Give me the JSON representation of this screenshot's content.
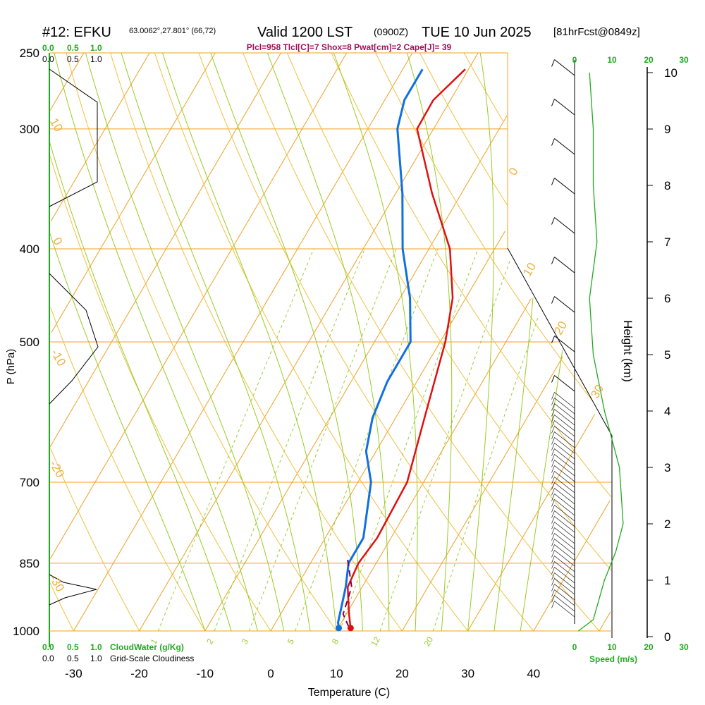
{
  "header": {
    "station": "#12: EFKU",
    "coords": "63.0062°,27.801° (66,72)",
    "valid": "Valid 1200 LST",
    "zulu": "(0900Z)",
    "date": "TUE 10 Jun 2025",
    "forecast": "[81hrFcst@0849z]"
  },
  "params_line": "Plcl=958 Tlcl[C]=7 Shox=8 Pwat[cm]=2 Cape[J]= 39",
  "top_left_scale": {
    "green": [
      "0.0",
      "0.5",
      "1.0"
    ],
    "black": [
      "0.0",
      "0.5",
      "1.0"
    ]
  },
  "bottom_left_scale": {
    "green": [
      "0.0",
      "0.5",
      "1.0"
    ],
    "green_label": "CloudWater (g/Kg)",
    "black": [
      "0.0",
      "0.5",
      "1.0"
    ],
    "black_label": "Grid-Scale Cloudiness"
  },
  "speed_scale": {
    "ticks": [
      "0",
      "10",
      "20",
      "30"
    ],
    "label": "Speed (m/s)"
  },
  "colors": {
    "isotherm": "#f0a020",
    "dry_adiabat": "#f0c040",
    "moist_adiabat": "#99cc22",
    "mixing_ratio": "#99cc33",
    "temperature": "#e01010",
    "dewpoint": "#1070e0",
    "parcel": "#800050",
    "speed": "#22aa22"
  },
  "chart_data": {
    "type": "skew-t",
    "xlabel": "Temperature (C)",
    "ylabel": "P (hPa)",
    "y2label": "Height (km)",
    "x_ticks": [
      -30,
      -20,
      -10,
      0,
      10,
      20,
      30,
      40
    ],
    "p_ticks": [
      250,
      300,
      400,
      500,
      700,
      850,
      1000
    ],
    "height_ticks": [
      0,
      1,
      2,
      3,
      4,
      5,
      6,
      7,
      8,
      9,
      10
    ],
    "isotherm_labels": [
      "0",
      "10",
      "20",
      "30",
      "10",
      "0",
      "-10",
      "-20",
      "-30"
    ],
    "mixing_ratio_labels": [
      "1",
      "2",
      "3",
      "5",
      "8",
      "12",
      "20"
    ],
    "temperature_profile": [
      {
        "p": 993,
        "t": 11.9
      },
      {
        "p": 960,
        "t": 10.4
      },
      {
        "p": 900,
        "t": 7.8
      },
      {
        "p": 850,
        "t": 7.3
      },
      {
        "p": 800,
        "t": 7.9
      },
      {
        "p": 700,
        "t": 7.5
      },
      {
        "p": 600,
        "t": 4.4
      },
      {
        "p": 500,
        "t": 0.8
      },
      {
        "p": 450,
        "t": -2.0
      },
      {
        "p": 400,
        "t": -6.8
      },
      {
        "p": 350,
        "t": -14.5
      },
      {
        "p": 300,
        "t": -22.5
      },
      {
        "p": 280,
        "t": -22.6
      },
      {
        "p": 260,
        "t": -20.5
      }
    ],
    "dewpoint_profile": [
      {
        "p": 993,
        "t": 10.1
      },
      {
        "p": 980,
        "t": 9.5
      },
      {
        "p": 900,
        "t": 7.5
      },
      {
        "p": 850,
        "t": 5.8
      },
      {
        "p": 800,
        "t": 5.8
      },
      {
        "p": 700,
        "t": 2.0
      },
      {
        "p": 650,
        "t": -1.5
      },
      {
        "p": 600,
        "t": -3.5
      },
      {
        "p": 550,
        "t": -4.5
      },
      {
        "p": 500,
        "t": -4.5
      },
      {
        "p": 450,
        "t": -8.5
      },
      {
        "p": 400,
        "t": -14.0
      },
      {
        "p": 350,
        "t": -19.0
      },
      {
        "p": 300,
        "t": -25.5
      },
      {
        "p": 280,
        "t": -27.0
      },
      {
        "p": 260,
        "t": -27.0
      }
    ],
    "parcel_profile": [
      {
        "p": 990,
        "t": 11.5
      },
      {
        "p": 960,
        "t": 9.5
      },
      {
        "p": 900,
        "t": 8.4
      },
      {
        "p": 840,
        "t": 5.2
      }
    ],
    "speed_profile": [
      {
        "z": 0.1,
        "s": 1
      },
      {
        "z": 0.3,
        "s": 5
      },
      {
        "z": 1.0,
        "s": 8
      },
      {
        "z": 1.5,
        "s": 11
      },
      {
        "z": 2.0,
        "s": 13
      },
      {
        "z": 3.0,
        "s": 12
      },
      {
        "z": 4.0,
        "s": 8
      },
      {
        "z": 5.0,
        "s": 5
      },
      {
        "z": 6.0,
        "s": 4
      },
      {
        "z": 7.0,
        "s": 6
      },
      {
        "z": 8.0,
        "s": 5
      },
      {
        "z": 9.0,
        "s": 5
      },
      {
        "z": 10.0,
        "s": 4
      }
    ]
  }
}
